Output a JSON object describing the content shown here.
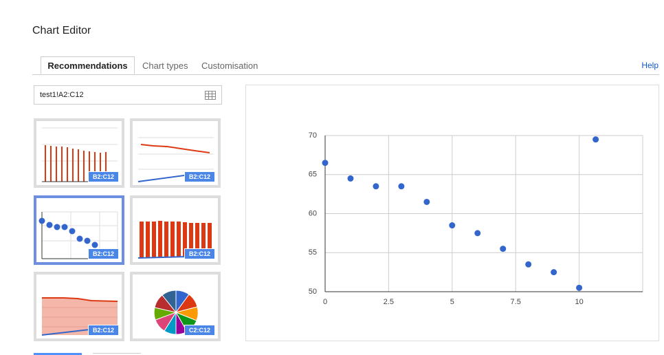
{
  "dialog": {
    "title": "Chart Editor",
    "tabs": [
      "Recommendations",
      "Chart types",
      "Customisation"
    ],
    "help": "Help",
    "range": "test1!A2:C12",
    "thumbnails": [
      "B2:C12",
      "B2:C12",
      "B2:C12",
      "B2:C12",
      "B2:C12",
      "C2:C12"
    ]
  },
  "chart_data": {
    "type": "scatter",
    "x": [
      0,
      1,
      2,
      3,
      4,
      5,
      6,
      7,
      8,
      9,
      10,
      10.65
    ],
    "values": [
      66.5,
      64.5,
      63.5,
      63.5,
      61.5,
      58.5,
      57.5,
      55.5,
      53.5,
      52.5,
      50.5,
      69.5
    ],
    "color": "#3366cc",
    "xlim": [
      0,
      12.5
    ],
    "ylim": [
      50,
      70
    ],
    "xticks": [
      0,
      2.5,
      5,
      7.5,
      10
    ],
    "yticks": [
      50,
      55,
      60,
      65,
      70
    ],
    "grid": true
  }
}
